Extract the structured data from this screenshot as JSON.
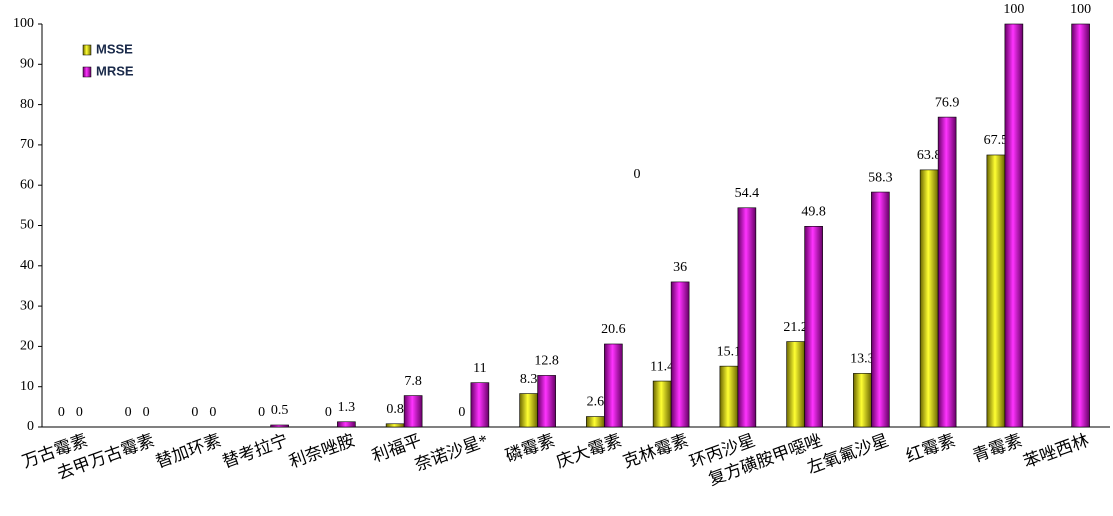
{
  "chart_data": {
    "type": "bar",
    "categories": [
      "万古霉素",
      "去甲万古霉素",
      "替加环素",
      "替考拉宁",
      "利奈唑胺",
      "利福平",
      "奈诺沙星*",
      "磷霉素",
      "庆大霉素",
      "克林霉素",
      "环丙沙星",
      "复方磺胺甲噁唑",
      "左氧氟沙星",
      "红霉素",
      "青霉素",
      "苯唑西林"
    ],
    "series": [
      {
        "name": "MSSE",
        "color": "#c8c000",
        "values": [
          0,
          0,
          0,
          0,
          0,
          0.8,
          0,
          8.3,
          2.6,
          11.4,
          15.1,
          21.2,
          13.3,
          63.8,
          67.5,
          0
        ]
      },
      {
        "name": "MRSE",
        "color": "#cc00cc",
        "values": [
          0,
          0,
          0,
          0.5,
          1.3,
          7.8,
          11,
          12.8,
          20.6,
          36,
          54.4,
          49.8,
          58.3,
          76.9,
          100,
          100
        ]
      }
    ],
    "ylim": [
      0,
      100
    ],
    "yticks": [
      0,
      10,
      20,
      30,
      40,
      50,
      60,
      70,
      80,
      90,
      100
    ],
    "legend": "top-left"
  }
}
